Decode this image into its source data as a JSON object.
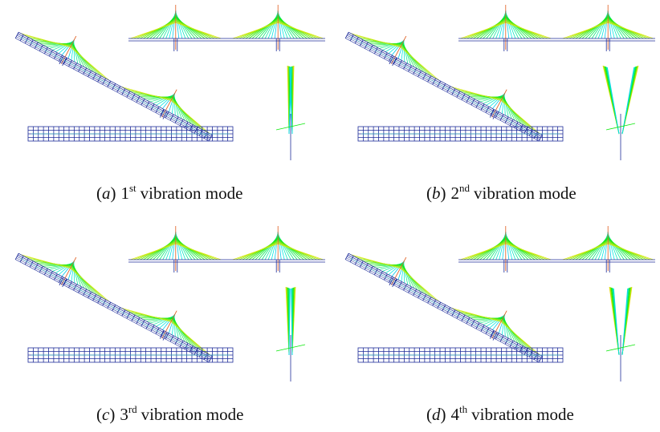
{
  "panels": [
    {
      "open": "(",
      "letter": "a",
      "close": ")",
      "number": "1",
      "suffix": "st",
      "text": "vibration mode"
    },
    {
      "open": "(",
      "letter": "b",
      "close": ")",
      "number": "2",
      "suffix": "nd",
      "text": "vibration mode"
    },
    {
      "open": "(",
      "letter": "c",
      "close": ")",
      "number": "3",
      "suffix": "rd",
      "text": "vibration mode"
    },
    {
      "open": "(",
      "letter": "d",
      "close": ")",
      "number": "4",
      "suffix": "th",
      "text": "vibration mode"
    }
  ]
}
